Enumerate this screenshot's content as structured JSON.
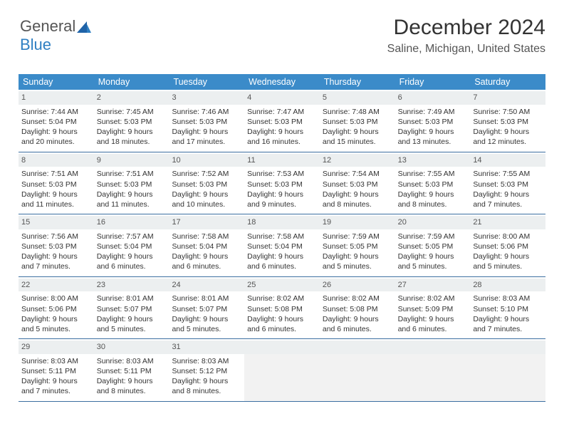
{
  "logo": {
    "text1": "General",
    "text2": "Blue"
  },
  "title": "December 2024",
  "location": "Saline, Michigan, United States",
  "colors": {
    "header_bg": "#3b8bc9",
    "header_text": "#ffffff",
    "daynum_bg": "#eceff0",
    "week_border": "#3b6ea0",
    "body_text": "#333333",
    "logo_gray": "#555555",
    "logo_blue": "#2f7fc2",
    "empty_bg": "#f2f2f2"
  },
  "weekdays": [
    "Sunday",
    "Monday",
    "Tuesday",
    "Wednesday",
    "Thursday",
    "Friday",
    "Saturday"
  ],
  "weeks": [
    [
      {
        "n": "1",
        "sr": "7:44 AM",
        "ss": "5:04 PM",
        "d1": "Daylight: 9 hours",
        "d2": "and 20 minutes."
      },
      {
        "n": "2",
        "sr": "7:45 AM",
        "ss": "5:03 PM",
        "d1": "Daylight: 9 hours",
        "d2": "and 18 minutes."
      },
      {
        "n": "3",
        "sr": "7:46 AM",
        "ss": "5:03 PM",
        "d1": "Daylight: 9 hours",
        "d2": "and 17 minutes."
      },
      {
        "n": "4",
        "sr": "7:47 AM",
        "ss": "5:03 PM",
        "d1": "Daylight: 9 hours",
        "d2": "and 16 minutes."
      },
      {
        "n": "5",
        "sr": "7:48 AM",
        "ss": "5:03 PM",
        "d1": "Daylight: 9 hours",
        "d2": "and 15 minutes."
      },
      {
        "n": "6",
        "sr": "7:49 AM",
        "ss": "5:03 PM",
        "d1": "Daylight: 9 hours",
        "d2": "and 13 minutes."
      },
      {
        "n": "7",
        "sr": "7:50 AM",
        "ss": "5:03 PM",
        "d1": "Daylight: 9 hours",
        "d2": "and 12 minutes."
      }
    ],
    [
      {
        "n": "8",
        "sr": "7:51 AM",
        "ss": "5:03 PM",
        "d1": "Daylight: 9 hours",
        "d2": "and 11 minutes."
      },
      {
        "n": "9",
        "sr": "7:51 AM",
        "ss": "5:03 PM",
        "d1": "Daylight: 9 hours",
        "d2": "and 11 minutes."
      },
      {
        "n": "10",
        "sr": "7:52 AM",
        "ss": "5:03 PM",
        "d1": "Daylight: 9 hours",
        "d2": "and 10 minutes."
      },
      {
        "n": "11",
        "sr": "7:53 AM",
        "ss": "5:03 PM",
        "d1": "Daylight: 9 hours",
        "d2": "and 9 minutes."
      },
      {
        "n": "12",
        "sr": "7:54 AM",
        "ss": "5:03 PM",
        "d1": "Daylight: 9 hours",
        "d2": "and 8 minutes."
      },
      {
        "n": "13",
        "sr": "7:55 AM",
        "ss": "5:03 PM",
        "d1": "Daylight: 9 hours",
        "d2": "and 8 minutes."
      },
      {
        "n": "14",
        "sr": "7:55 AM",
        "ss": "5:03 PM",
        "d1": "Daylight: 9 hours",
        "d2": "and 7 minutes."
      }
    ],
    [
      {
        "n": "15",
        "sr": "7:56 AM",
        "ss": "5:03 PM",
        "d1": "Daylight: 9 hours",
        "d2": "and 7 minutes."
      },
      {
        "n": "16",
        "sr": "7:57 AM",
        "ss": "5:04 PM",
        "d1": "Daylight: 9 hours",
        "d2": "and 6 minutes."
      },
      {
        "n": "17",
        "sr": "7:58 AM",
        "ss": "5:04 PM",
        "d1": "Daylight: 9 hours",
        "d2": "and 6 minutes."
      },
      {
        "n": "18",
        "sr": "7:58 AM",
        "ss": "5:04 PM",
        "d1": "Daylight: 9 hours",
        "d2": "and 6 minutes."
      },
      {
        "n": "19",
        "sr": "7:59 AM",
        "ss": "5:05 PM",
        "d1": "Daylight: 9 hours",
        "d2": "and 5 minutes."
      },
      {
        "n": "20",
        "sr": "7:59 AM",
        "ss": "5:05 PM",
        "d1": "Daylight: 9 hours",
        "d2": "and 5 minutes."
      },
      {
        "n": "21",
        "sr": "8:00 AM",
        "ss": "5:06 PM",
        "d1": "Daylight: 9 hours",
        "d2": "and 5 minutes."
      }
    ],
    [
      {
        "n": "22",
        "sr": "8:00 AM",
        "ss": "5:06 PM",
        "d1": "Daylight: 9 hours",
        "d2": "and 5 minutes."
      },
      {
        "n": "23",
        "sr": "8:01 AM",
        "ss": "5:07 PM",
        "d1": "Daylight: 9 hours",
        "d2": "and 5 minutes."
      },
      {
        "n": "24",
        "sr": "8:01 AM",
        "ss": "5:07 PM",
        "d1": "Daylight: 9 hours",
        "d2": "and 5 minutes."
      },
      {
        "n": "25",
        "sr": "8:02 AM",
        "ss": "5:08 PM",
        "d1": "Daylight: 9 hours",
        "d2": "and 6 minutes."
      },
      {
        "n": "26",
        "sr": "8:02 AM",
        "ss": "5:08 PM",
        "d1": "Daylight: 9 hours",
        "d2": "and 6 minutes."
      },
      {
        "n": "27",
        "sr": "8:02 AM",
        "ss": "5:09 PM",
        "d1": "Daylight: 9 hours",
        "d2": "and 6 minutes."
      },
      {
        "n": "28",
        "sr": "8:03 AM",
        "ss": "5:10 PM",
        "d1": "Daylight: 9 hours",
        "d2": "and 7 minutes."
      }
    ],
    [
      {
        "n": "29",
        "sr": "8:03 AM",
        "ss": "5:11 PM",
        "d1": "Daylight: 9 hours",
        "d2": "and 7 minutes."
      },
      {
        "n": "30",
        "sr": "8:03 AM",
        "ss": "5:11 PM",
        "d1": "Daylight: 9 hours",
        "d2": "and 8 minutes."
      },
      {
        "n": "31",
        "sr": "8:03 AM",
        "ss": "5:12 PM",
        "d1": "Daylight: 9 hours",
        "d2": "and 8 minutes."
      },
      null,
      null,
      null,
      null
    ]
  ],
  "labels": {
    "sunrise": "Sunrise:",
    "sunset": "Sunset:"
  }
}
